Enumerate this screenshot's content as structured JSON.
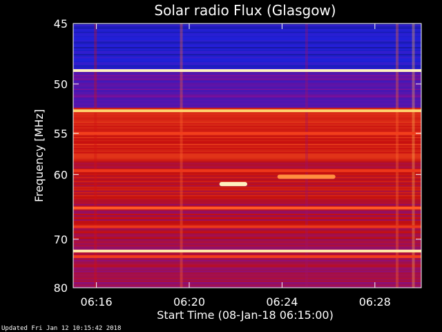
{
  "chart_data": {
    "type": "heatmap",
    "title": "Solar radio Flux (Glasgow)",
    "xlabel": "Start Time (08-Jan-18 06:15:00)",
    "ylabel": "Frequency [MHz]",
    "x_ticks": [
      "06:16",
      "06:20",
      "06:24",
      "06:28"
    ],
    "x_tick_minutes": [
      16,
      20,
      24,
      28
    ],
    "x_range_minutes": [
      15,
      30
    ],
    "y_ticks": [
      45,
      50,
      55,
      60,
      70,
      80
    ],
    "y_scale": "reciprocal",
    "y_range": [
      45,
      80
    ],
    "colormap": [
      "#10105a",
      "#2020d8",
      "#8010a0",
      "#d01010",
      "#ff5020",
      "#ffd060",
      "#ffffe8"
    ],
    "background_level": [
      {
        "from": 45,
        "to": 48.7,
        "level": 0.15
      },
      {
        "from": 48.7,
        "to": 52.3,
        "level": 0.28
      },
      {
        "from": 52.3,
        "to": 58,
        "level": 0.55
      },
      {
        "from": 58,
        "to": 64,
        "level": 0.5
      },
      {
        "from": 64,
        "to": 70,
        "level": 0.45
      },
      {
        "from": 70,
        "to": 80,
        "level": 0.42
      }
    ],
    "emission_lines_mhz": [
      {
        "freq": 48.8,
        "level": 0.95
      },
      {
        "freq": 52.6,
        "level": 0.85
      },
      {
        "freq": 55,
        "level": 0.62
      },
      {
        "freq": 59.5,
        "level": 0.6
      },
      {
        "freq": 64.8,
        "level": 0.68
      },
      {
        "freq": 67.8,
        "level": 0.6
      },
      {
        "freq": 72.2,
        "level": 0.92
      },
      {
        "freq": 73.3,
        "level": 0.62
      }
    ],
    "burst_events": [
      {
        "t_start": 21.3,
        "t_end": 22.5,
        "freq": 61.3,
        "level": 0.95
      },
      {
        "t_start": 23.8,
        "t_end": 26.3,
        "freq": 60.3,
        "level": 0.75
      }
    ]
  },
  "footer_text": "Updated Fri Jan 12 10:15:42 2018"
}
